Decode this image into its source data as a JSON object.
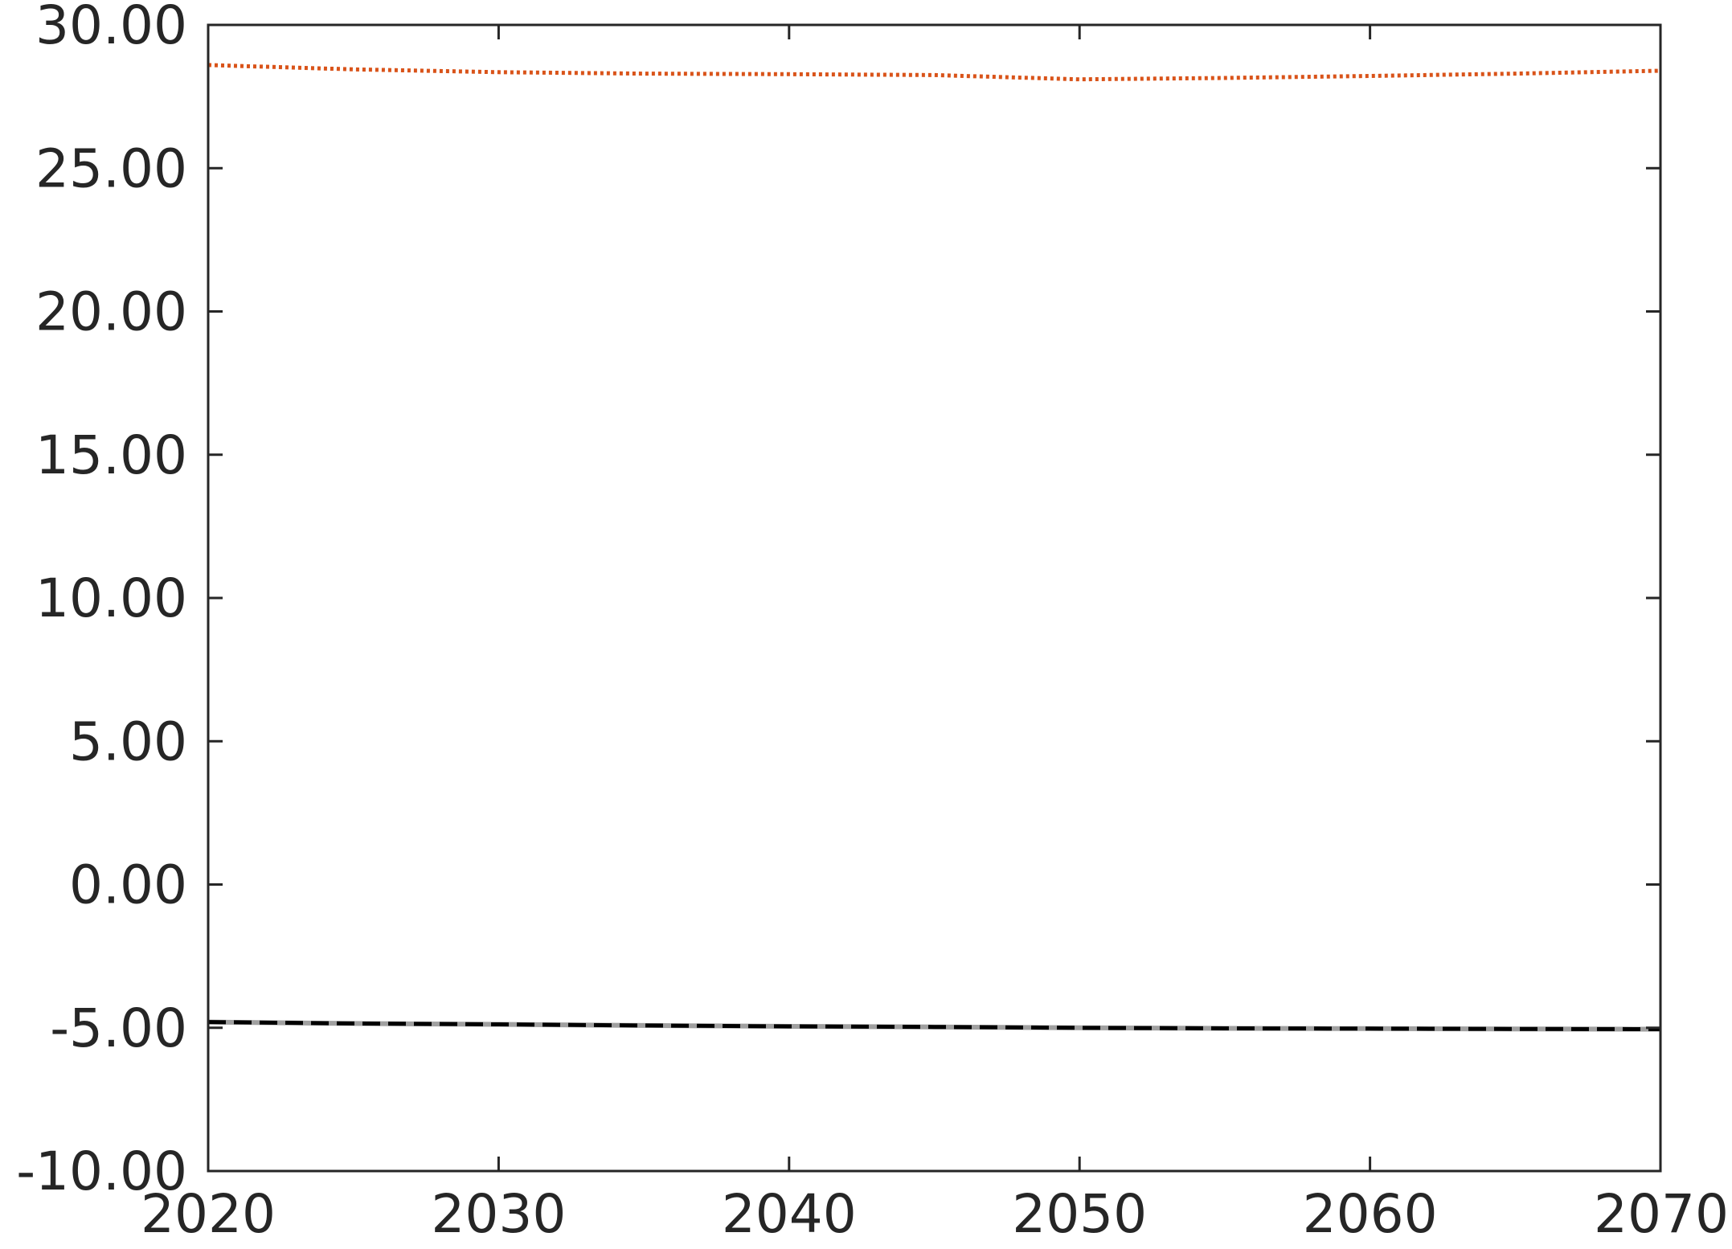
{
  "chart_data": {
    "type": "line",
    "title": "",
    "xlabel": "",
    "ylabel": "",
    "xlim": [
      2020,
      2070
    ],
    "ylim": [
      -10,
      30
    ],
    "x_ticks": [
      2020,
      2030,
      2040,
      2050,
      2060,
      2070
    ],
    "x_tick_labels": [
      "2020",
      "2030",
      "2040",
      "2050",
      "2060",
      "2070"
    ],
    "y_ticks": [
      -10,
      -5,
      0,
      5,
      10,
      15,
      20,
      25,
      30
    ],
    "y_tick_labels": [
      "-10.00",
      "-5.00",
      "0.00",
      "5.00",
      "10.00",
      "15.00",
      "20.00",
      "25.00",
      "30.00"
    ],
    "grid": false,
    "x": [
      2020,
      2025,
      2030,
      2035,
      2040,
      2045,
      2050,
      2055,
      2060,
      2065,
      2070
    ],
    "series": [
      {
        "color": "#d95319",
        "dash": "dotted",
        "values": [
          28.6,
          28.45,
          28.35,
          28.3,
          28.28,
          28.25,
          28.1,
          28.15,
          28.22,
          28.3,
          28.4
        ]
      },
      {
        "color": "#a0a0a0",
        "dash": "solid",
        "values": [
          -4.8,
          -4.85,
          -4.88,
          -4.92,
          -4.95,
          -4.97,
          -5.0,
          -5.02,
          -5.03,
          -5.04,
          -5.05
        ]
      },
      {
        "color": "#000000",
        "dash": "dashed",
        "values": [
          -4.8,
          -4.85,
          -4.88,
          -4.92,
          -4.95,
          -4.97,
          -5.0,
          -5.02,
          -5.03,
          -5.04,
          -5.05
        ]
      }
    ]
  }
}
